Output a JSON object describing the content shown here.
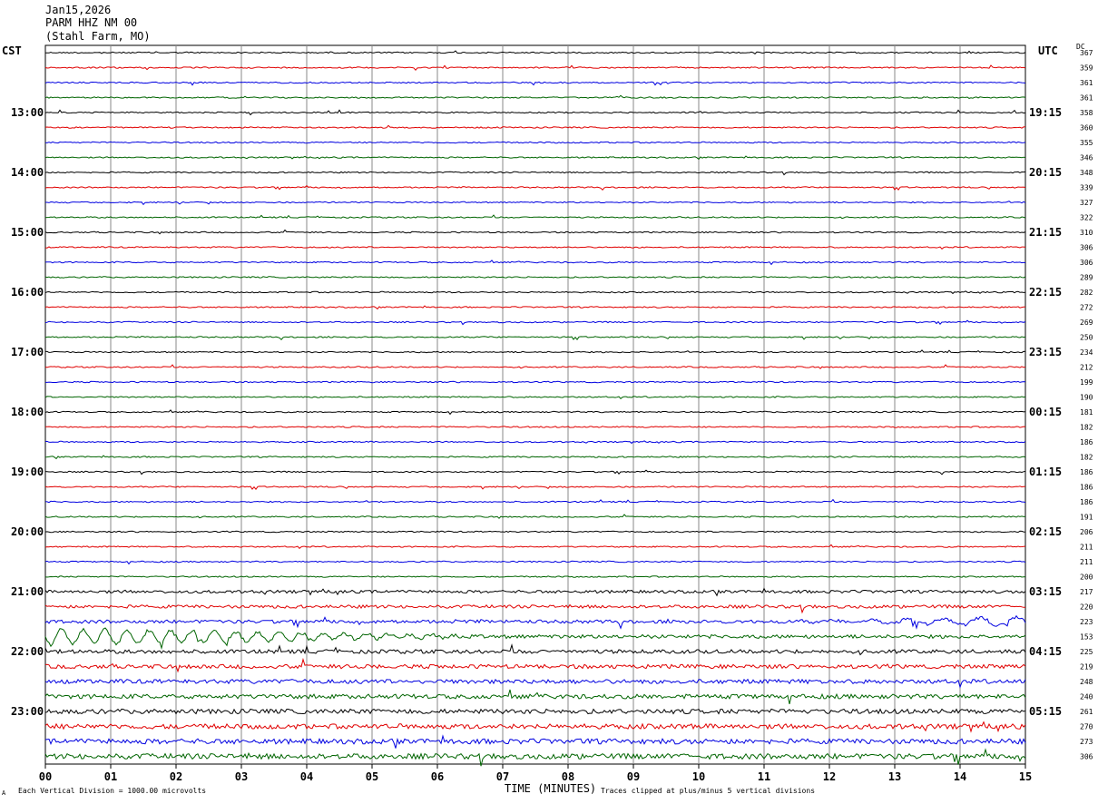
{
  "header": {
    "date": "Jan15,2026",
    "station": "PARM HHZ NM 00",
    "location": "(Stahl Farm, MO)"
  },
  "chart_data": {
    "type": "line",
    "title": "",
    "xlabel": "TIME (MINUTES)",
    "xlim": [
      0,
      15
    ],
    "x_ticks": [
      "00",
      "01",
      "02",
      "03",
      "04",
      "05",
      "06",
      "07",
      "08",
      "09",
      "10",
      "11",
      "12",
      "13",
      "14",
      "15"
    ],
    "left_timezone": "CST",
    "right_timezone": "UTC",
    "dc_label": "DC",
    "left_hour_labels": [
      "13:00",
      "14:00",
      "15:00",
      "16:00",
      "17:00",
      "18:00",
      "19:00",
      "20:00",
      "21:00",
      "22:00",
      "23:00"
    ],
    "right_hour_labels": [
      "19:15",
      "20:15",
      "21:15",
      "22:15",
      "23:15",
      "00:15",
      "01:15",
      "02:15",
      "03:15",
      "04:15",
      "05:15"
    ],
    "trace_colors": [
      "#000000",
      "#e00000",
      "#0000e0",
      "#006400"
    ],
    "dc_offsets": [
      367,
      359,
      361,
      361,
      358,
      360,
      355,
      346,
      348,
      339,
      327,
      322,
      310,
      306,
      306,
      289,
      282,
      272,
      269,
      250,
      234,
      212,
      199,
      190,
      181,
      182,
      186,
      182,
      186,
      186,
      186,
      191,
      206,
      211,
      211,
      200,
      217,
      220,
      223,
      153,
      225,
      219,
      248,
      240,
      261,
      270,
      273,
      306
    ],
    "grid": true,
    "footer_left": "Each Vertical Division = 1000.00 microvolts",
    "footer_right": "Traces clipped at plus/minus 5 vertical divisions",
    "footer_mark": "A"
  }
}
